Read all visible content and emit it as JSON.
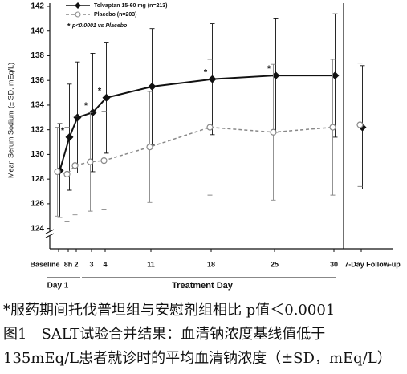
{
  "chart_data": {
    "type": "line",
    "y_label": "Mean Serum Sodium (± SD, mEq/L)",
    "x_label": "Treatment Day",
    "day1_label": "Day 1",
    "categories": [
      "Baseline",
      "8h",
      "2",
      "3",
      "4",
      "11",
      "18",
      "25",
      "30",
      "7-Day Follow-up"
    ],
    "series": [
      {
        "name": "Tolvaptan 15-60 mg (n=213)",
        "color": "#111111",
        "marker": "diamond",
        "values": [
          128.7,
          131.4,
          133.0,
          133.4,
          134.6,
          135.5,
          136.1,
          136.4,
          136.4,
          132.2
        ],
        "errors": [
          3.8,
          4.3,
          4.5,
          4.8,
          4.5,
          4.7,
          4.5,
          4.6,
          5.0,
          5.0
        ]
      },
      {
        "name": "Placebo (n=203)",
        "color": "#888888",
        "marker": "circle",
        "values": [
          128.6,
          128.4,
          129.1,
          129.4,
          129.5,
          130.6,
          132.2,
          131.8,
          132.2,
          132.4
        ],
        "errors": [
          3.6,
          3.8,
          4.0,
          4.0,
          4.0,
          4.5,
          5.5,
          5.5,
          5.5,
          5.0
        ]
      }
    ],
    "note": "p<0.0001 vs Placebo",
    "sig_marker": "*",
    "sig_indices": [
      1,
      3,
      4,
      6,
      7
    ],
    "ylim": [
      123,
      142
    ],
    "yticks": [
      124,
      126,
      128,
      130,
      132,
      134,
      136,
      138,
      140,
      142
    ]
  },
  "caption": [
    "*服药期间托伐普坦组与安慰剂组相比 p值＜0.0001",
    "图1　SALT试验合并结果：血清钠浓度基线值低于",
    "135mEq/L患者就诊时的平均血清钠浓度（±SD，mEq/L）"
  ]
}
